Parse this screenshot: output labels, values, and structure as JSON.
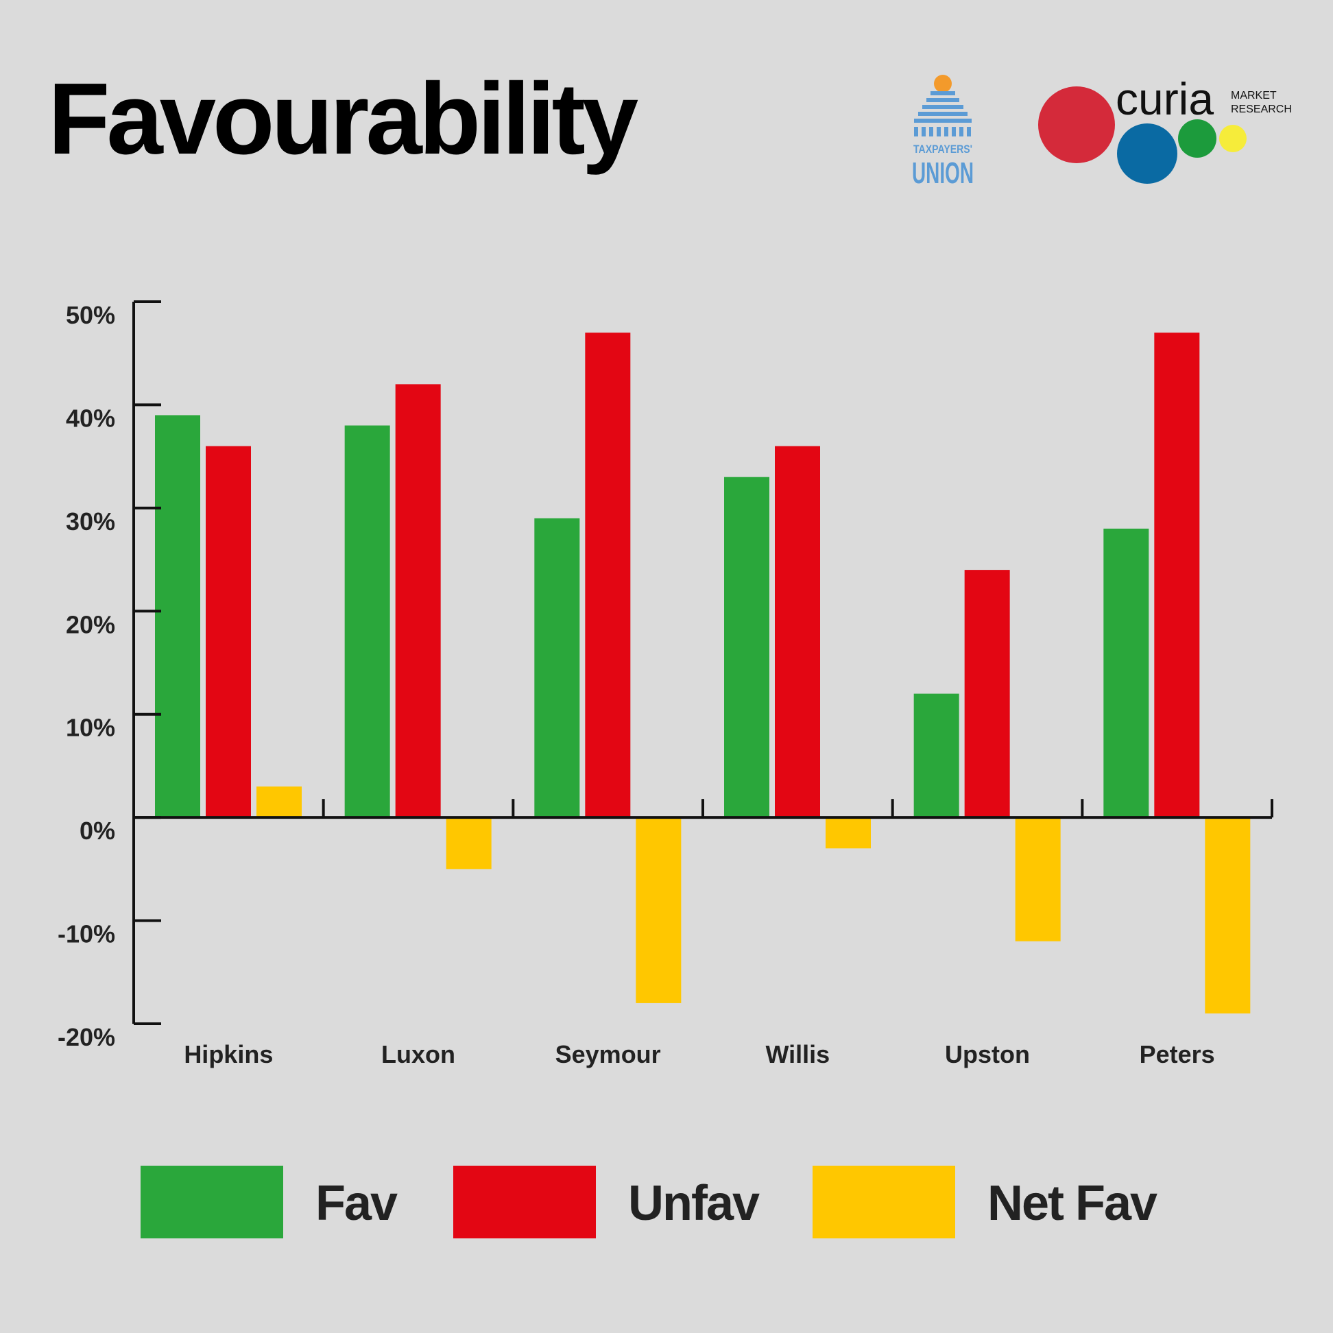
{
  "title": "Favourability",
  "logos": {
    "taxpayers_union": {
      "line1": "TAXPAYERS'",
      "line2": "UNION",
      "color": "#5b9bd5",
      "accent": "#f39a2b"
    },
    "curia": {
      "name": "curia",
      "line1": "MARKET",
      "line2": "RESEARCH",
      "dot_colors": [
        "#d42a3a",
        "#0a6aa3",
        "#1c9b3c",
        "#f6ec3a"
      ]
    }
  },
  "legend": [
    {
      "label": "Fav",
      "color": "#2aa73b"
    },
    {
      "label": "Unfav",
      "color": "#e30613"
    },
    {
      "label": "Net Fav",
      "color": "#ffc700"
    }
  ],
  "chart_data": {
    "type": "bar",
    "categories": [
      "Hipkins",
      "Luxon",
      "Seymour",
      "Willis",
      "Upston",
      "Peters"
    ],
    "series": [
      {
        "name": "Fav",
        "color": "#2aa73b",
        "values": [
          39,
          38,
          29,
          33,
          12,
          28
        ]
      },
      {
        "name": "Unfav",
        "color": "#e30613",
        "values": [
          36,
          42,
          47,
          36,
          24,
          47
        ]
      },
      {
        "name": "Net Fav",
        "color": "#ffc700",
        "values": [
          3,
          -5,
          -18,
          -3,
          -12,
          -19
        ]
      }
    ],
    "ylim": [
      -20,
      50
    ],
    "yticks": [
      -20,
      -10,
      0,
      10,
      20,
      30,
      40,
      50
    ],
    "ytick_labels": [
      "-20%",
      "-10%",
      "0%",
      "10%",
      "20%",
      "30%",
      "40%",
      "50%"
    ],
    "legend_position": "bottom",
    "grid": false
  }
}
